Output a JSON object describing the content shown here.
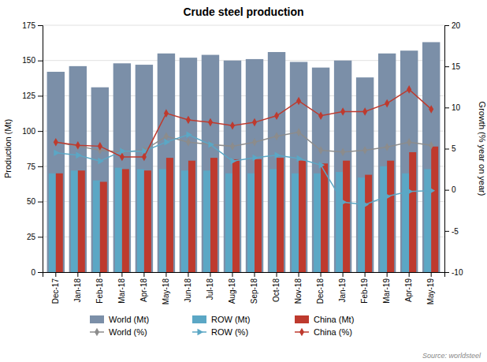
{
  "chart_data": {
    "type": "bar",
    "title": "Crude steel production",
    "categories": [
      "Dec-17",
      "Jan-18",
      "Feb-18",
      "Mar-18",
      "Apr-18",
      "May-18",
      "Jun-18",
      "Jul-18",
      "Aug-18",
      "Sep-18",
      "Oct-18",
      "Nov-18",
      "Dec-18",
      "Jan-19",
      "Feb-19",
      "Mar-19",
      "Apr-19",
      "May-19"
    ],
    "series": [
      {
        "name": "World (Mt)",
        "type": "bar",
        "color": "#7b8fa8",
        "values": [
          142,
          146,
          131,
          148,
          147,
          155,
          152,
          154,
          150,
          151,
          156,
          149,
          145,
          150,
          138,
          155,
          157,
          163
        ]
      },
      {
        "name": "ROW (Mt)",
        "type": "bar",
        "color": "#5ba7c5",
        "values": [
          70,
          72,
          65,
          74,
          73,
          73,
          72,
          72,
          70,
          70,
          73,
          70,
          70,
          71,
          67,
          75,
          70,
          73
        ]
      },
      {
        "name": "China (Mt)",
        "type": "bar",
        "color": "#be3a2e",
        "values": [
          70,
          72,
          64,
          73,
          72,
          81,
          79,
          81,
          80,
          80,
          81,
          79,
          77,
          79,
          69,
          79,
          85,
          89
        ]
      },
      {
        "name": "World (%)",
        "type": "line",
        "axis": "y2",
        "color": "#8c8c8c",
        "marker": "diamond",
        "values": [
          5.8,
          5.3,
          4.8,
          4.6,
          4.8,
          6.5,
          5.8,
          5.5,
          5.3,
          5.8,
          6.5,
          7.0,
          4.8,
          4.6,
          4.8,
          5.2,
          5.8,
          5.4
        ]
      },
      {
        "name": "ROW (%)",
        "type": "line",
        "axis": "y2",
        "color": "#5ba7c5",
        "marker": "triangle-right",
        "values": [
          4.5,
          4.2,
          3.5,
          4.7,
          4.7,
          5.8,
          6.7,
          5.5,
          3.5,
          3.9,
          4.2,
          3.8,
          3.0,
          -1.5,
          -1.8,
          -0.8,
          -0.2,
          -0.1
        ]
      },
      {
        "name": "China (%)",
        "type": "line",
        "axis": "y2",
        "color": "#be3a2e",
        "marker": "diamond",
        "values": [
          5.8,
          5.4,
          5.3,
          4.0,
          4.0,
          9.3,
          8.5,
          8.2,
          7.8,
          8.2,
          9.0,
          10.8,
          9.0,
          9.5,
          9.5,
          10.5,
          12.2,
          9.8
        ]
      }
    ],
    "ylabel": "Production (Mt)",
    "y2label": "Growth (% year on year)",
    "ylim": [
      0,
      175
    ],
    "yticks": [
      0,
      25,
      50,
      75,
      100,
      125,
      150,
      175
    ],
    "y2lim": [
      -10,
      20
    ],
    "y2ticks": [
      -10,
      -5,
      0,
      5,
      10,
      15,
      20
    ],
    "grid": true,
    "legend": "bottom",
    "source": "Source: worldsteel"
  }
}
